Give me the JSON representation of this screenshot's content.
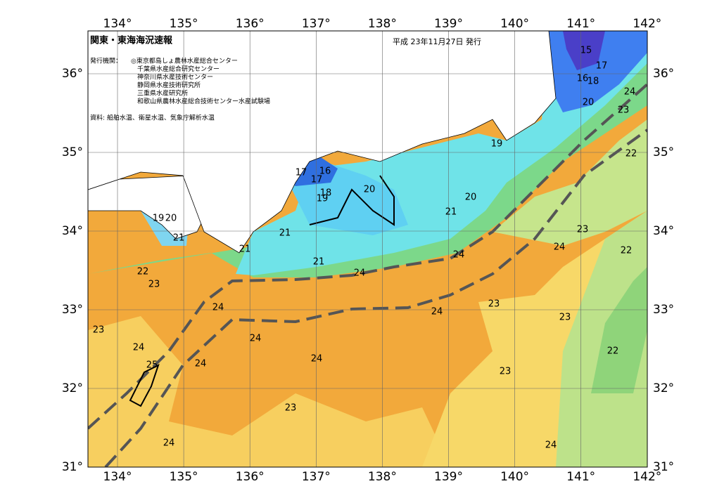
{
  "header": {
    "title": "関東・東海海況速報",
    "date": "平成 23年11月27日 発行",
    "issuer_heading": "発行機関：",
    "issuers": [
      "◎東京都島しょ農林水産総合センター",
      "千葉県水産総合研究センター",
      "神奈川県水産技術センター",
      "静岡県水産技術研究所",
      "三重県水産研究所",
      "和歌山県農林水産総合技術センター水産試験場"
    ],
    "source": "資料: 船舶水温、衛星水温、気象庁解析水温"
  },
  "map": {
    "lon_ticks": [
      {
        "value": 134,
        "label": "134°"
      },
      {
        "value": 135,
        "label": "135°"
      },
      {
        "value": 136,
        "label": "136°"
      },
      {
        "value": 137,
        "label": "137°"
      },
      {
        "value": 138,
        "label": "138°"
      },
      {
        "value": 139,
        "label": "139°"
      },
      {
        "value": 140,
        "label": "140°"
      },
      {
        "value": 141,
        "label": "141°"
      },
      {
        "value": 142,
        "label": "142°"
      }
    ],
    "lat_ticks": [
      {
        "value": 31,
        "label": "31°"
      },
      {
        "value": 32,
        "label": "32°"
      },
      {
        "value": 33,
        "label": "33°"
      },
      {
        "value": 34,
        "label": "34°"
      },
      {
        "value": 35,
        "label": "35°"
      },
      {
        "value": 36,
        "label": "36°"
      }
    ],
    "contour_labels": [
      "15",
      "17",
      "16",
      "18",
      "20",
      "24",
      "23",
      "19",
      "22",
      "17",
      "16",
      "17",
      "18",
      "19",
      "20",
      "20",
      "21",
      "19",
      "20",
      "21",
      "21",
      "21",
      "21",
      "23",
      "24",
      "22",
      "24",
      "24",
      "22",
      "23",
      "24",
      "24",
      "23",
      "23",
      "24",
      "24",
      "23",
      "25",
      "24",
      "24",
      "22",
      "23",
      "23",
      "24",
      "24"
    ]
  }
}
